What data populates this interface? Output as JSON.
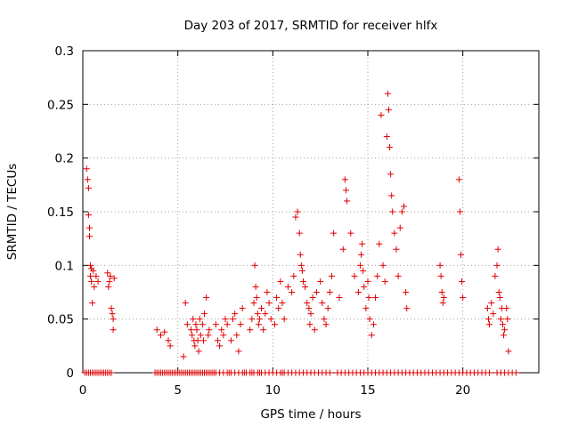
{
  "chart_data": {
    "type": "scatter",
    "title": "Day 203 of 2017, SRMTID for receiver hlfx",
    "xlabel": "GPS time / hours",
    "ylabel": "SRMTID / TECUs",
    "xlim": [
      0,
      24
    ],
    "ylim": [
      0,
      0.3
    ],
    "xticks": [
      0,
      5,
      10,
      15,
      20
    ],
    "yticks": [
      0,
      0.05,
      0.1,
      0.15,
      0.2,
      0.25,
      0.3
    ],
    "ytick_labels": [
      "0",
      "0.05",
      "0.1",
      "0.15",
      "0.2",
      "0.25",
      "0.3"
    ],
    "grid": true,
    "marker": "+",
    "color": "#e00000",
    "series": [
      {
        "x": [
          0.2,
          0.25,
          0.3,
          0.3,
          0.35,
          0.35,
          0.4,
          0.4,
          0.45,
          0.45,
          0.5,
          0.55,
          0.6,
          0.7,
          0.8,
          1.3,
          1.35,
          1.4,
          1.45,
          1.5,
          1.55,
          1.6,
          1.6,
          1.65,
          3.9,
          4.1,
          4.3,
          4.5,
          4.6,
          5.3,
          5.4,
          5.5,
          5.7,
          5.75,
          5.8,
          5.85,
          5.9,
          5.95,
          6.0,
          6.05,
          6.1,
          6.15,
          6.2,
          6.3,
          6.35,
          6.4,
          6.5,
          6.6,
          6.65,
          7.0,
          7.1,
          7.2,
          7.3,
          7.4,
          7.5,
          7.6,
          7.8,
          7.9,
          8.0,
          8.1,
          8.2,
          8.3,
          8.4,
          8.8,
          8.9,
          9.0,
          9.05,
          9.1,
          9.15,
          9.2,
          9.25,
          9.3,
          9.4,
          9.5,
          9.6,
          9.7,
          9.8,
          9.9,
          10.1,
          10.2,
          10.3,
          10.4,
          10.5,
          10.6,
          10.8,
          11.0,
          11.1,
          11.2,
          11.3,
          11.4,
          11.45,
          11.5,
          11.55,
          11.6,
          11.7,
          11.8,
          11.9,
          11.95,
          12.0,
          12.1,
          12.2,
          12.3,
          12.5,
          12.6,
          12.7,
          12.8,
          12.9,
          13.0,
          13.1,
          13.2,
          13.5,
          13.7,
          13.8,
          13.85,
          13.9,
          14.1,
          14.3,
          14.5,
          14.6,
          14.65,
          14.7,
          14.75,
          14.8,
          14.9,
          15.0,
          15.05,
          15.1,
          15.2,
          15.3,
          15.4,
          15.5,
          15.6,
          15.7,
          15.8,
          15.9,
          16.0,
          16.05,
          16.1,
          16.15,
          16.2,
          16.25,
          16.3,
          16.4,
          16.5,
          16.6,
          16.7,
          16.8,
          16.9,
          17.0,
          17.05,
          18.8,
          18.85,
          18.9,
          18.95,
          19.0,
          19.8,
          19.85,
          19.9,
          19.95,
          20.0,
          21.3,
          21.35,
          21.4,
          21.5,
          21.6,
          21.7,
          21.8,
          21.85,
          21.9,
          21.95,
          22.0,
          22.05,
          22.1,
          22.15,
          22.2,
          22.3,
          22.35,
          22.4
        ],
        "y": [
          0.19,
          0.18,
          0.172,
          0.147,
          0.135,
          0.127,
          0.1,
          0.09,
          0.097,
          0.085,
          0.065,
          0.095,
          0.08,
          0.09,
          0.085,
          0.093,
          0.08,
          0.085,
          0.09,
          0.06,
          0.055,
          0.05,
          0.04,
          0.088,
          0.04,
          0.035,
          0.038,
          0.03,
          0.025,
          0.015,
          0.065,
          0.045,
          0.04,
          0.035,
          0.05,
          0.03,
          0.025,
          0.045,
          0.04,
          0.03,
          0.02,
          0.05,
          0.035,
          0.045,
          0.03,
          0.055,
          0.07,
          0.035,
          0.04,
          0.045,
          0.03,
          0.025,
          0.04,
          0.035,
          0.05,
          0.045,
          0.03,
          0.05,
          0.055,
          0.035,
          0.02,
          0.045,
          0.06,
          0.04,
          0.05,
          0.065,
          0.1,
          0.08,
          0.07,
          0.055,
          0.045,
          0.05,
          0.06,
          0.04,
          0.055,
          0.075,
          0.065,
          0.05,
          0.045,
          0.07,
          0.06,
          0.085,
          0.065,
          0.05,
          0.08,
          0.075,
          0.09,
          0.145,
          0.15,
          0.13,
          0.11,
          0.1,
          0.095,
          0.085,
          0.08,
          0.065,
          0.06,
          0.045,
          0.055,
          0.07,
          0.04,
          0.075,
          0.085,
          0.065,
          0.05,
          0.045,
          0.06,
          0.075,
          0.09,
          0.13,
          0.07,
          0.115,
          0.18,
          0.17,
          0.16,
          0.13,
          0.09,
          0.075,
          0.1,
          0.11,
          0.12,
          0.095,
          0.08,
          0.06,
          0.085,
          0.07,
          0.05,
          0.035,
          0.045,
          0.07,
          0.09,
          0.12,
          0.24,
          0.1,
          0.085,
          0.22,
          0.26,
          0.245,
          0.21,
          0.185,
          0.165,
          0.15,
          0.13,
          0.115,
          0.09,
          0.135,
          0.15,
          0.155,
          0.075,
          0.06,
          0.1,
          0.09,
          0.075,
          0.065,
          0.07,
          0.18,
          0.15,
          0.11,
          0.085,
          0.07,
          0.06,
          0.05,
          0.045,
          0.065,
          0.055,
          0.09,
          0.1,
          0.115,
          0.075,
          0.07,
          0.05,
          0.06,
          0.045,
          0.035,
          0.04,
          0.06,
          0.05,
          0.02
        ]
      },
      {
        "x": [
          0.1,
          0.2,
          0.3,
          0.4,
          0.5,
          0.6,
          0.7,
          0.8,
          0.9,
          1.0,
          1.1,
          1.2,
          1.3,
          1.4,
          1.5,
          3.8,
          3.9,
          4.0,
          4.1,
          4.2,
          4.3,
          4.4,
          4.5,
          4.6,
          4.7,
          4.8,
          4.9,
          5.0,
          5.1,
          5.2,
          5.3,
          5.4,
          5.5,
          5.6,
          5.7,
          5.8,
          5.9,
          6.0,
          6.1,
          6.2,
          6.3,
          6.4,
          6.5,
          6.6,
          6.7,
          6.8,
          6.9,
          7.0,
          7.2,
          7.4,
          7.6,
          7.7,
          7.8,
          8.0,
          8.2,
          8.4,
          8.5,
          8.6,
          8.8,
          8.9,
          9.0,
          9.2,
          9.3,
          9.4,
          9.6,
          9.8,
          10.0,
          10.2,
          10.4,
          10.5,
          10.6,
          10.8,
          11.0,
          11.2,
          11.4,
          11.6,
          11.8,
          12.0,
          12.2,
          12.4,
          12.6,
          12.8,
          13.0,
          13.4,
          13.6,
          13.8,
          14.0,
          14.2,
          14.4,
          14.6,
          14.8,
          15.0,
          15.2,
          15.4,
          15.6,
          15.8,
          16.0,
          16.2,
          16.4,
          16.6,
          16.8,
          17.0,
          17.2,
          17.4,
          17.6,
          17.8,
          18.0,
          18.2,
          18.4,
          18.6,
          18.8,
          19.0,
          19.2,
          19.4,
          19.6,
          19.8,
          20.0,
          20.2,
          20.4,
          20.6,
          20.8,
          21.0,
          21.2,
          21.4,
          21.8,
          22.0,
          22.2,
          22.4,
          22.6,
          22.8
        ],
        "y": [
          0,
          0,
          0,
          0,
          0,
          0,
          0,
          0,
          0,
          0,
          0,
          0,
          0,
          0,
          0,
          0,
          0,
          0,
          0,
          0,
          0,
          0,
          0,
          0,
          0,
          0,
          0,
          0,
          0,
          0,
          0,
          0,
          0,
          0,
          0,
          0,
          0,
          0,
          0,
          0,
          0,
          0,
          0,
          0,
          0,
          0,
          0,
          0,
          0,
          0,
          0,
          0,
          0,
          0,
          0,
          0,
          0,
          0,
          0,
          0,
          0,
          0,
          0,
          0,
          0,
          0,
          0,
          0,
          0,
          0,
          0,
          0,
          0,
          0,
          0,
          0,
          0,
          0,
          0,
          0,
          0,
          0,
          0,
          0,
          0,
          0,
          0,
          0,
          0,
          0,
          0,
          0,
          0,
          0,
          0,
          0,
          0,
          0,
          0,
          0,
          0,
          0,
          0,
          0,
          0,
          0,
          0,
          0,
          0,
          0,
          0,
          0,
          0,
          0,
          0,
          0,
          0,
          0,
          0,
          0,
          0,
          0,
          0,
          0,
          0,
          0,
          0,
          0,
          0,
          0
        ]
      }
    ]
  }
}
